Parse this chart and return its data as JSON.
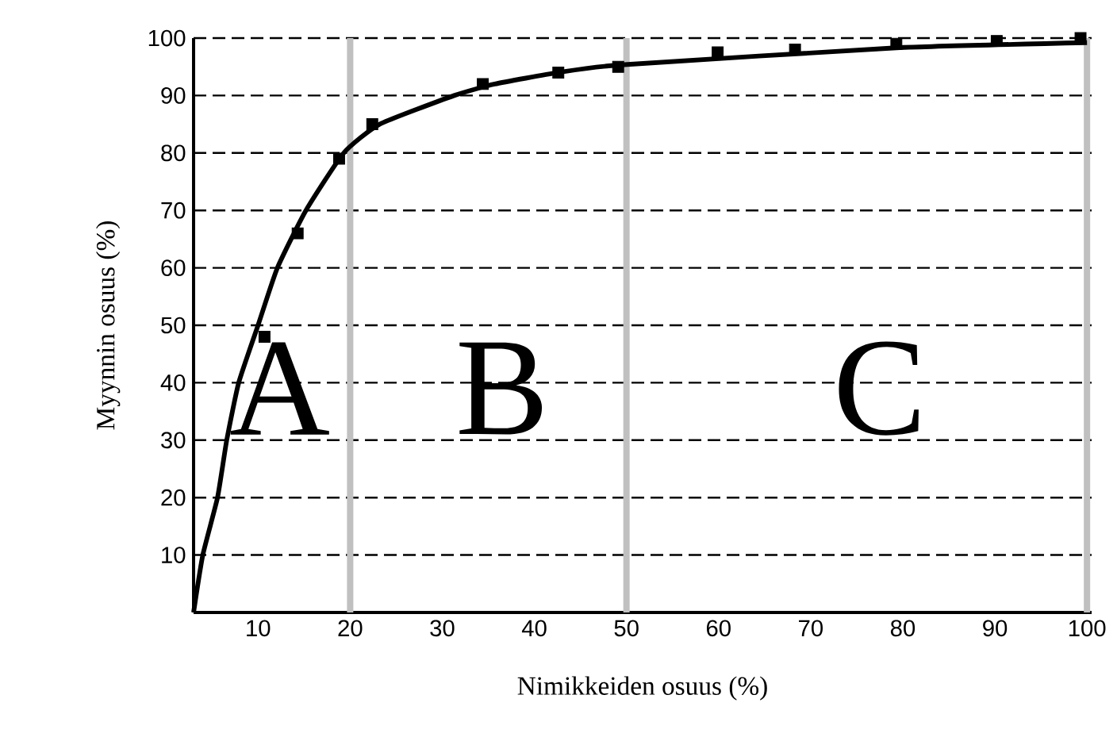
{
  "chart_data": {
    "type": "scatter",
    "xlabel": "Nimikkeiden osuus (%)",
    "ylabel": "Myynnin osuus (%)",
    "xlim": [
      3,
      100.5
    ],
    "ylim": [
      0,
      100
    ],
    "xticks": [
      10,
      20,
      30,
      40,
      50,
      60,
      70,
      80,
      90,
      100
    ],
    "yticks": [
      10,
      20,
      30,
      40,
      50,
      60,
      70,
      80,
      90,
      100
    ],
    "grid": "y",
    "line_style": "dashed",
    "ref_lines": [
      {
        "axis": "x",
        "value": 20,
        "label": "A",
        "color": "#c0c0c0"
      },
      {
        "axis": "x",
        "value": 50,
        "label": "B",
        "color": "#c0c0c0"
      },
      {
        "axis": "x",
        "value": 100,
        "label": "C",
        "color": "#c0c0c0"
      }
    ],
    "series": [
      {
        "marker": "square",
        "color": "#000000",
        "x": [
          10.7,
          14.3,
          18.8,
          22.4,
          34.4,
          42.6,
          49.1,
          59.9,
          68.3,
          79.3,
          90.2,
          99.3
        ],
        "values": [
          48,
          66,
          79,
          85,
          92,
          94,
          95,
          97.5,
          98,
          99,
          99.5,
          100
        ]
      },
      {
        "type": "line",
        "marker": "none",
        "line_style": "solid",
        "color": "#000000",
        "x": [
          3,
          4,
          5.6,
          6.6,
          7.9,
          10,
          12.1,
          15.2,
          19.3,
          23.2,
          31.3,
          35.7,
          42.6,
          49.1,
          79.3,
          100
        ],
        "values": [
          0,
          10,
          20,
          30,
          40,
          50,
          60,
          70,
          80,
          85,
          90,
          92,
          94,
          95.3,
          98.3,
          99.2
        ]
      }
    ]
  }
}
